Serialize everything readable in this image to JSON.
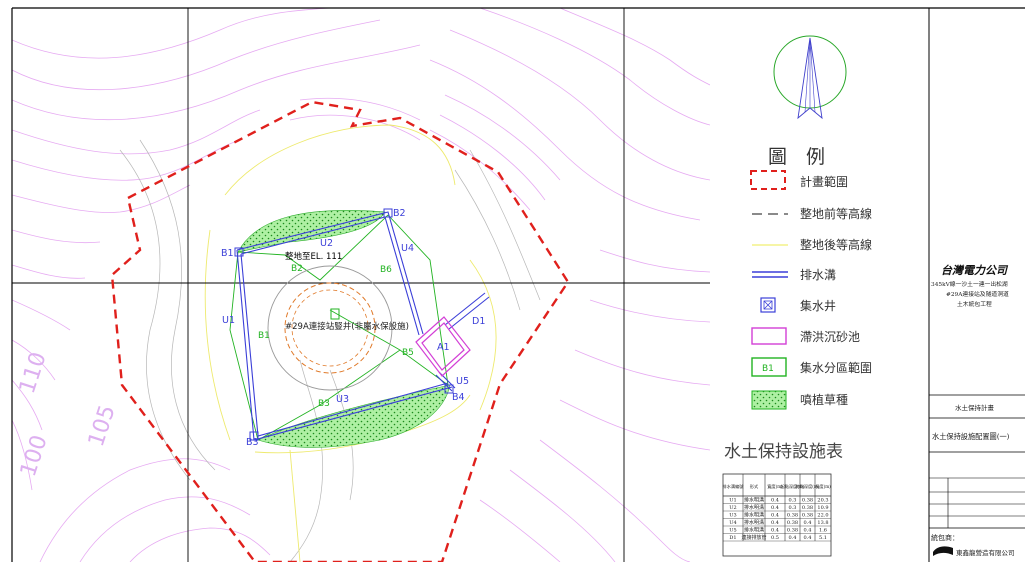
{
  "plan": {
    "design_elevation": "整地至EL. 111",
    "shaft_label": "#29A連接站豎井(非屬水保設施)",
    "contour_values": [
      "110",
      "105",
      "100"
    ],
    "catchments": [
      "B1",
      "B2",
      "B3",
      "B4",
      "B5",
      "B6",
      "B1",
      "B2"
    ],
    "ditches": [
      "U1",
      "U2",
      "U3",
      "U4",
      "U5",
      "D1"
    ],
    "basin_label": "A1"
  },
  "legend": {
    "title": "圖　例",
    "items": [
      {
        "label": "計畫範圍",
        "icon": "dashed-red-box-icon"
      },
      {
        "label": "整地前等高線",
        "icon": "dashed-line-icon"
      },
      {
        "label": "整地後等高線",
        "icon": "yellow-line-icon"
      },
      {
        "label": "排水溝",
        "icon": "double-blue-line-icon"
      },
      {
        "label": "集水井",
        "icon": "catch-basin-icon"
      },
      {
        "label": "滯洪沉砂池",
        "icon": "magenta-box-icon"
      },
      {
        "label": "集水分區範圍",
        "icon": "green-box-icon",
        "tag": "B1"
      },
      {
        "label": "噴植草種",
        "icon": "hatched-green-box-icon"
      }
    ]
  },
  "facility_table": {
    "title": "水土保持設施表",
    "headers": [
      "排水溝編號",
      "形式",
      "寬度(m)",
      "起點深度(m)",
      "終點深度(m)",
      "長度(m)"
    ],
    "rows": [
      [
        "U1",
        "排水明溝",
        "0.4",
        "0.3",
        "0.38",
        "20.3"
      ],
      [
        "U2",
        "排水明溝",
        "0.4",
        "0.3",
        "0.38",
        "10.9"
      ],
      [
        "U3",
        "排水明溝",
        "0.4",
        "0.38",
        "0.38",
        "22.0"
      ],
      [
        "U4",
        "排水明溝",
        "0.4",
        "0.38",
        "0.4",
        "13.8"
      ],
      [
        "U5",
        "排水明溝",
        "0.4",
        "0.38",
        "0.4",
        "1.6"
      ],
      [
        "D1",
        "連接排放管",
        "0.5",
        "0.4",
        "0.4",
        "5.1"
      ]
    ]
  },
  "title_block": {
    "company": "台灣電力公司",
    "project_lines": [
      "345kV線一沙土一連一出松湖",
      "#29A連接站及隧道洞道",
      "土木統包工程"
    ],
    "plan_name": "水土保持計畫",
    "drawing_name": "水土保持設施配置圖(一)",
    "contractor_label": "統包商：",
    "contractor_name": "東鑫龍營造有限公司"
  },
  "colors": {
    "boundary": "#e0201c",
    "ditch": "#3b3fd8",
    "basin": "#d33fd6",
    "catchment": "#22b322",
    "vegetation": "#4ad84a",
    "contour_post": "#f0ef70",
    "contour_pre": "#e3a6f0"
  }
}
